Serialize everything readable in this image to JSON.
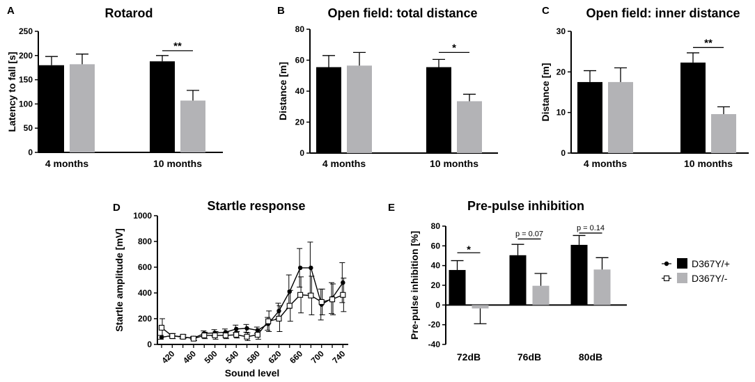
{
  "colors": {
    "wt": "#000000",
    "mut": "#b3b3b6",
    "axis": "#000000"
  },
  "legend": {
    "items": [
      {
        "label": "D367Y/+",
        "line_marker": "filled-circle",
        "color": "#000000"
      },
      {
        "label": "D367Y/-",
        "line_marker": "open-square",
        "color": "#b3b3b6"
      }
    ]
  },
  "chart_data": [
    {
      "id": "A",
      "panel_label": "A",
      "type": "bar",
      "title": "Rotarod",
      "xlabel": "",
      "ylabel": "Latency to fall [s]",
      "ylim": [
        0,
        250
      ],
      "yticks": [
        0,
        50,
        100,
        150,
        200,
        250
      ],
      "ytick_labels": [
        "0",
        "50",
        "100",
        "150",
        "200",
        "250"
      ],
      "categories": [
        "4 months",
        "10 months"
      ],
      "series": [
        {
          "name": "D367Y/+",
          "values": [
            180,
            188
          ],
          "errors": [
            18,
            12
          ]
        },
        {
          "name": "D367Y/-",
          "values": [
            182,
            107
          ],
          "errors": [
            21,
            21
          ]
        }
      ],
      "annotations": [
        {
          "category_index": 1,
          "text": "**",
          "bar_y": 210
        }
      ]
    },
    {
      "id": "B",
      "panel_label": "B",
      "type": "bar",
      "title": "Open field: total distance",
      "xlabel": "",
      "ylabel": "Distance [m]",
      "ylim": [
        0,
        80
      ],
      "yticks": [
        0,
        20,
        40,
        60,
        80
      ],
      "ytick_labels": [
        "0",
        "20",
        "40",
        "60",
        "80"
      ],
      "categories": [
        "4 months",
        "10 months"
      ],
      "series": [
        {
          "name": "D367Y/+",
          "values": [
            55.5,
            55.5
          ],
          "errors": [
            7.5,
            5
          ]
        },
        {
          "name": "D367Y/-",
          "values": [
            56.5,
            33.5
          ],
          "errors": [
            8.5,
            4.5
          ]
        }
      ],
      "annotations": [
        {
          "category_index": 1,
          "text": "*",
          "bar_y": 65
        }
      ]
    },
    {
      "id": "C",
      "panel_label": "C",
      "type": "bar",
      "title": "Open field: inner distance",
      "xlabel": "",
      "ylabel": "Distance [m]",
      "ylim": [
        0,
        30
      ],
      "yticks": [
        0,
        10,
        20,
        30
      ],
      "ytick_labels": [
        "0",
        "10",
        "20",
        "30"
      ],
      "categories": [
        "4 months",
        "10 months"
      ],
      "series": [
        {
          "name": "D367Y/+",
          "values": [
            17.5,
            22.3
          ],
          "errors": [
            2.8,
            2.4
          ]
        },
        {
          "name": "D367Y/-",
          "values": [
            17.5,
            9.6
          ],
          "errors": [
            3.5,
            1.8
          ]
        }
      ],
      "annotations": [
        {
          "category_index": 1,
          "text": "**",
          "bar_y": 26
        }
      ]
    },
    {
      "id": "D",
      "panel_label": "D",
      "type": "line",
      "title": "Startle response",
      "xlabel": "Sound level",
      "ylabel": "Startle amplitude [mV]",
      "ylim": [
        0,
        1000
      ],
      "yticks": [
        0,
        200,
        400,
        600,
        800,
        1000
      ],
      "ytick_labels": [
        "0",
        "200",
        "400",
        "600",
        "800",
        "1000"
      ],
      "xlim": [
        400,
        750
      ],
      "xticks": [
        420,
        460,
        500,
        540,
        580,
        620,
        660,
        700,
        740
      ],
      "xtick_labels": [
        "420",
        "460",
        "500",
        "540",
        "580",
        "620",
        "660",
        "700",
        "740"
      ],
      "x": [
        400,
        420,
        440,
        460,
        480,
        500,
        520,
        540,
        560,
        580,
        600,
        620,
        640,
        660,
        680,
        700,
        720,
        740
      ],
      "series": [
        {
          "name": "D367Y/+",
          "marker": "filled-circle",
          "values": [
            55,
            70,
            55,
            50,
            85,
            90,
            95,
            120,
            125,
            110,
            160,
            260,
            410,
            595,
            595,
            310,
            360,
            480
          ],
          "errors": [
            15,
            10,
            10,
            10,
            20,
            25,
            25,
            30,
            30,
            25,
            50,
            60,
            130,
            150,
            200,
            120,
            120,
            155
          ]
        },
        {
          "name": "D367Y/-",
          "marker": "open-square",
          "values": [
            130,
            65,
            60,
            45,
            70,
            70,
            70,
            75,
            60,
            75,
            180,
            200,
            300,
            385,
            380,
            330,
            350,
            385
          ],
          "errors": [
            70,
            20,
            15,
            15,
            25,
            30,
            25,
            25,
            30,
            35,
            80,
            100,
            120,
            140,
            150,
            100,
            120,
            130
          ]
        }
      ]
    },
    {
      "id": "E",
      "panel_label": "E",
      "type": "bar",
      "title": "Pre-pulse inhibition",
      "xlabel": "",
      "ylabel": "Pre-pulse inhibition [%]",
      "ylim": [
        -40,
        80
      ],
      "yticks": [
        -40,
        -20,
        0,
        20,
        40,
        60,
        80
      ],
      "ytick_labels": [
        "-40",
        "-20",
        "0",
        "20",
        "40",
        "60",
        "80"
      ],
      "categories": [
        "72dB",
        "76dB",
        "80dB"
      ],
      "series": [
        {
          "name": "D367Y/+",
          "values": [
            35.5,
            50.5,
            61
          ],
          "errors": [
            9.5,
            11,
            9.5
          ]
        },
        {
          "name": "D367Y/-",
          "values": [
            -3.5,
            19.5,
            36
          ],
          "errors": [
            15.5,
            12.5,
            12
          ]
        }
      ],
      "annotations": [
        {
          "category_index": 0,
          "text": "*",
          "bar_y": 53
        },
        {
          "category_index": 1,
          "text": "p = 0.07",
          "bar_y": 67
        },
        {
          "category_index": 2,
          "text": "p = 0.14",
          "bar_y": 73
        }
      ]
    }
  ]
}
